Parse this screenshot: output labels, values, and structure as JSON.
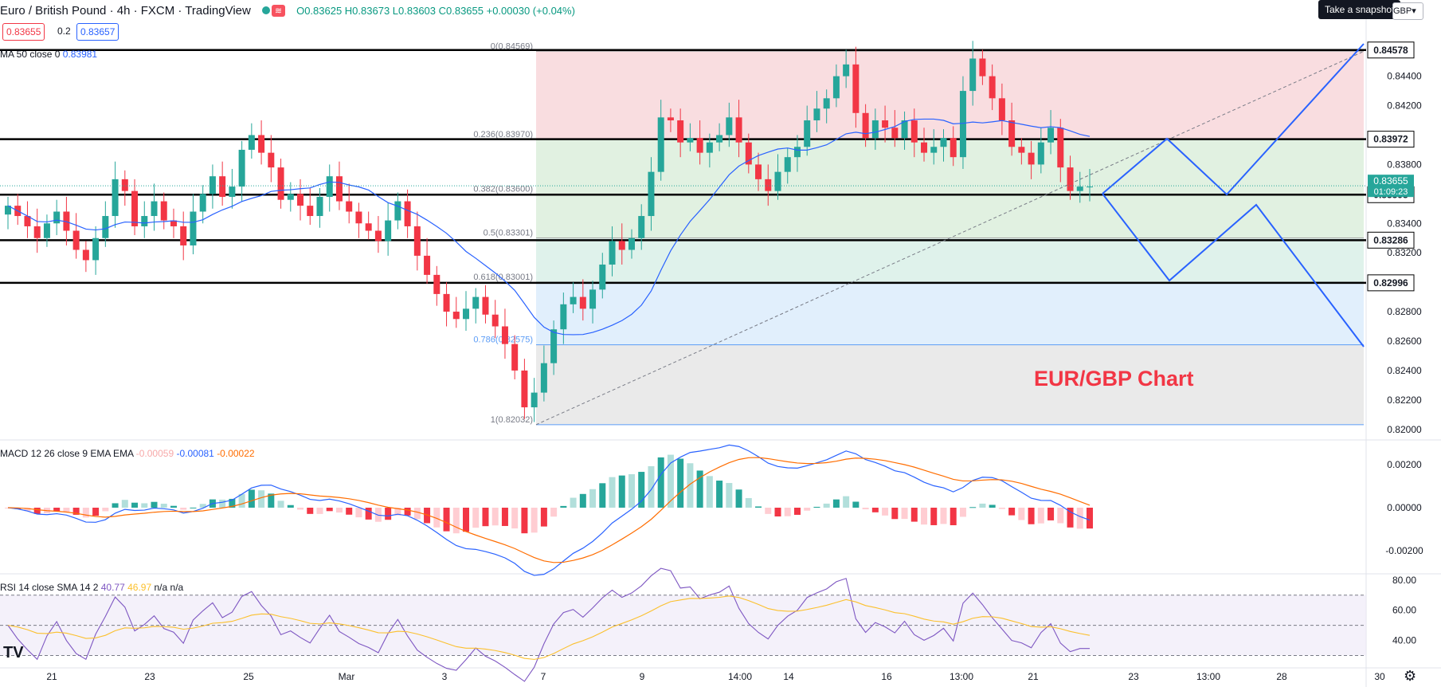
{
  "header": {
    "symbol": "Euro / British Pound · 4h · FXCM · TradingView",
    "ohlc": "O0.83625 H0.83673 L0.83603 C0.83655 +0.00030 (+0.04%)",
    "bid": "0.83655",
    "spread": "0.2",
    "ask": "0.83657",
    "snapshot_tooltip": "Take a snapshot",
    "currency": "GBP"
  },
  "indicators": {
    "ma_label": "MA 50 close 0",
    "ma_value": "0.83981",
    "macd_label": "MACD 12 26 close 9 EMA EMA",
    "macd_hist": "-0.00059",
    "macd_line": "-0.00081",
    "macd_signal": "-0.00022",
    "rsi_label": "RSI 14 close SMA 14 2",
    "rsi_value": "40.77",
    "rsi_sma": "46.97",
    "rsi_na": "n/a n/a"
  },
  "annotation": "EUR/GBP Chart",
  "time_labels": [
    "21",
    "23",
    "25",
    "Mar",
    "3",
    "7",
    "9",
    "14:00",
    "14",
    "16",
    "13:00",
    "21",
    "23",
    "13:00",
    "28",
    "30"
  ],
  "price_axis": {
    "ticks": [
      "0.84400",
      "0.84200",
      "0.83800",
      "0.83400",
      "0.83200",
      "0.82800",
      "0.82600",
      "0.82400",
      "0.82200",
      "0.82000"
    ],
    "level_tags": [
      "0.84578",
      "0.83972",
      "0.83595",
      "0.83286",
      "0.82996"
    ],
    "current_price": "0.83655",
    "countdown": "01:09:23"
  },
  "macd_axis": [
    "0.00200",
    "0.00000",
    "-0.00200"
  ],
  "rsi_axis": [
    "80.00",
    "60.00",
    "40.00"
  ],
  "fib_labels": [
    "0(0.84569)",
    "0.236(0.83970)",
    "0.382(0.83600)",
    "0.5(0.83301)",
    "0.618(0.83001)",
    "0.786(0.82575)",
    "1(0.82032)"
  ],
  "colors": {
    "up": "#26a69a",
    "down": "#f23645",
    "ma": "#2962ff",
    "signal": "#ff6d00",
    "rsi": "#7e57c2",
    "rsi_sma": "#fbc02d",
    "projection": "#2962ff"
  },
  "chart_data": {
    "type": "candlestick",
    "instrument": "EUR/GBP",
    "timeframe": "4h",
    "ylim": [
      0.8195,
      0.8462
    ],
    "candles_close_approx": [
      0.8352,
      0.8345,
      0.8338,
      0.833,
      0.834,
      0.8348,
      0.8335,
      0.8322,
      0.8315,
      0.833,
      0.8345,
      0.837,
      0.8362,
      0.8338,
      0.8345,
      0.8355,
      0.8342,
      0.8338,
      0.8325,
      0.8348,
      0.836,
      0.8372,
      0.8358,
      0.8365,
      0.839,
      0.84,
      0.8388,
      0.8378,
      0.8356,
      0.836,
      0.8352,
      0.8345,
      0.8358,
      0.8372,
      0.8355,
      0.8348,
      0.834,
      0.8335,
      0.8328,
      0.8342,
      0.8355,
      0.8338,
      0.8318,
      0.8305,
      0.8292,
      0.828,
      0.8275,
      0.8282,
      0.829,
      0.8278,
      0.827,
      0.8258,
      0.824,
      0.8215,
      0.8225,
      0.8245,
      0.8268,
      0.8285,
      0.829,
      0.8282,
      0.8295,
      0.8312,
      0.8328,
      0.8322,
      0.833,
      0.8345,
      0.8375,
      0.8412,
      0.841,
      0.8395,
      0.8398,
      0.8388,
      0.8395,
      0.84,
      0.8412,
      0.8395,
      0.838,
      0.837,
      0.8362,
      0.8375,
      0.8385,
      0.8392,
      0.841,
      0.8418,
      0.8425,
      0.844,
      0.8448,
      0.8415,
      0.8398,
      0.841,
      0.8405,
      0.8398,
      0.841,
      0.8395,
      0.8388,
      0.8392,
      0.8398,
      0.8385,
      0.843,
      0.8452,
      0.844,
      0.8425,
      0.841,
      0.8392,
      0.8388,
      0.838,
      0.8395,
      0.8405,
      0.8378,
      0.8362,
      0.8365,
      0.8365
    ],
    "fibonacci": [
      {
        "level": "0",
        "price": 0.84569
      },
      {
        "level": "0.236",
        "price": 0.8397
      },
      {
        "level": "0.382",
        "price": 0.836
      },
      {
        "level": "0.5",
        "price": 0.83301
      },
      {
        "level": "0.618",
        "price": 0.83001
      },
      {
        "level": "0.786",
        "price": 0.82575
      },
      {
        "level": "1",
        "price": 0.82032
      }
    ],
    "horizontal_levels": [
      0.84578,
      0.83972,
      0.83595,
      0.83286,
      0.82996
    ],
    "macd_range": [
      -0.003,
      0.003
    ],
    "rsi_range": [
      25,
      82
    ]
  }
}
